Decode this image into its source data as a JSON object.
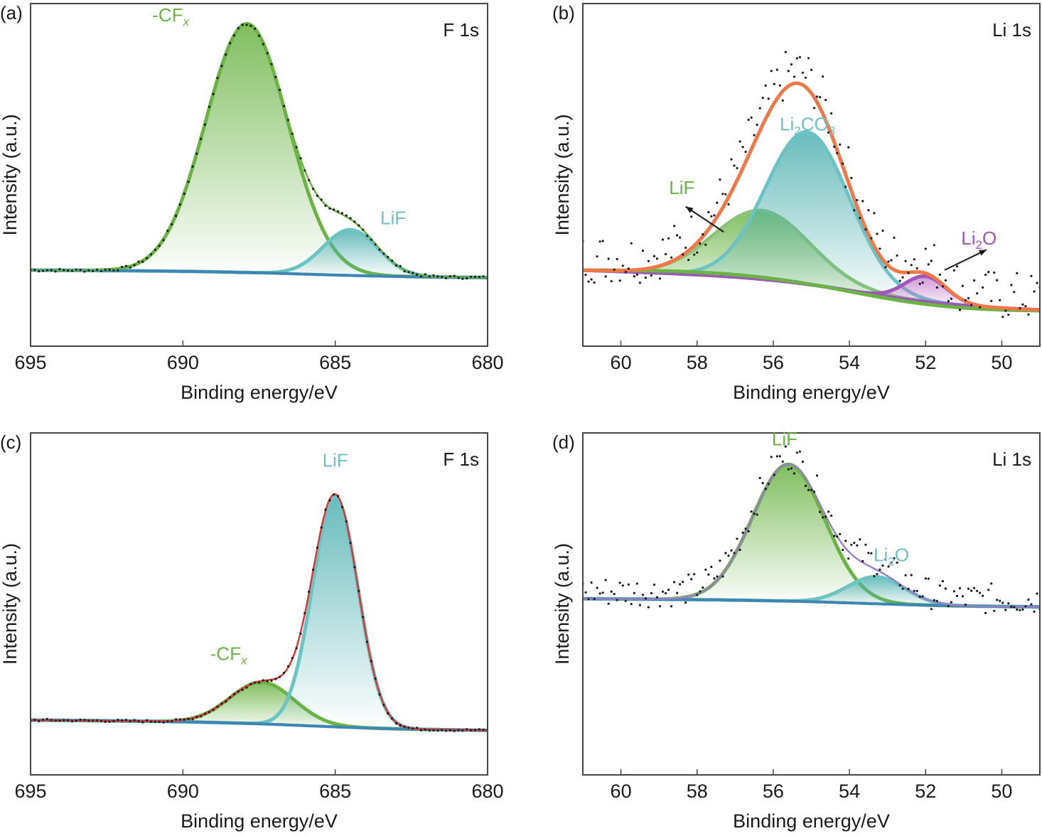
{
  "chart_data": [
    {
      "type": "line",
      "panel": "(a)",
      "core_level": "F 1s",
      "xlabel": "Binding energy/eV",
      "ylabel": "Intensity (a.u.)",
      "xlim": [
        695,
        680
      ],
      "ylim": [
        -0.3,
        1.05
      ],
      "xticks": [
        695,
        690,
        685,
        680
      ],
      "background": {
        "start": 0.0,
        "end": -0.03,
        "color": "#3a7fc4"
      },
      "envelope": {
        "color": "#6ab344"
      },
      "components": [
        {
          "name": "-CFx",
          "label": "-CF",
          "label_sub": "x",
          "center": 687.9,
          "height": 0.98,
          "sigma": 1.35,
          "color": "#6ab344",
          "fill": "#6ab344"
        },
        {
          "name": "LiF",
          "label": "LiF",
          "label_sub": "",
          "center": 684.5,
          "height": 0.18,
          "sigma": 0.9,
          "color": "#6cc3c3",
          "fill": "#4fb0b0"
        }
      ],
      "labels": [
        {
          "text": "-CF",
          "sub": "x",
          "x": 690.4,
          "y": 0.98,
          "color": "#6ab344"
        },
        {
          "text": "LiF",
          "sub": "",
          "x": 683.1,
          "y": 0.18,
          "color": "#6cc3c3"
        }
      ],
      "noise": 0.006,
      "arrows": []
    },
    {
      "type": "line",
      "panel": "(b)",
      "core_level": "Li 1s",
      "xlabel": "Binding energy/eV",
      "ylabel": "Intensity (a.u.)",
      "xlim": [
        61,
        49
      ],
      "ylim": [
        -0.3,
        1.05
      ],
      "xticks": [
        60,
        58,
        56,
        54,
        52,
        50
      ],
      "background": {
        "start": 0.0,
        "end": -0.16,
        "color": "#9a5bb5"
      },
      "background2": {
        "color": "#6ab344"
      },
      "envelope": {
        "color": "#f07848"
      },
      "components": [
        {
          "name": "LiF",
          "label": "LiF",
          "label_sub": "",
          "center": 56.3,
          "height": 0.27,
          "sigma": 1.25,
          "color": "#8cc47a",
          "fill": "#6ab344"
        },
        {
          "name": "Li2CO3",
          "label": "Li",
          "label_sub": "2",
          "center": 55.1,
          "height": 0.6,
          "sigma": 1.1,
          "color": "#6cc3c3",
          "fill": "#4fb0b0"
        },
        {
          "name": "Li2O",
          "label": "Li",
          "label_sub": "2",
          "center": 52.0,
          "height": 0.1,
          "sigma": 0.55,
          "color": "#a055b8",
          "fill": "#c070c8"
        }
      ],
      "labels": [
        {
          "text": "LiF",
          "sub": "",
          "x": 58.4,
          "y": 0.3,
          "color": "#6ab344"
        },
        {
          "text": "Li",
          "sub": "2",
          "sub_after": "CO",
          "sub2": "3",
          "x": 55.1,
          "y": 0.55,
          "color": "#6cc3c3"
        },
        {
          "text": "Li",
          "sub": "2",
          "sub_after": "O",
          "x": 50.6,
          "y": 0.1,
          "color": "#a055b8"
        }
      ],
      "arrows": [
        {
          "from": [
            57.3,
            0.15
          ],
          "to": [
            58.3,
            0.25
          ]
        },
        {
          "from": [
            51.5,
            0.0
          ],
          "to": [
            50.4,
            0.08
          ]
        }
      ],
      "noise": 0.04
    },
    {
      "type": "line",
      "panel": "(c)",
      "core_level": "F 1s",
      "xlabel": "Binding energy/eV",
      "ylabel": "Intensity (a.u.)",
      "xlim": [
        695,
        680
      ],
      "ylim": [
        -0.21,
        1.1
      ],
      "xticks": [
        695,
        690,
        685,
        680
      ],
      "background": {
        "start": 0.0,
        "end": -0.04,
        "color": "#3a7fc4"
      },
      "envelope": {
        "color": "#d83a3a"
      },
      "components": [
        {
          "name": "-CFx",
          "label": "-CF",
          "label_sub": "x",
          "center": 687.4,
          "height": 0.16,
          "sigma": 1.05,
          "color": "#6ab344",
          "fill": "#6ab344"
        },
        {
          "name": "LiF",
          "label": "LiF",
          "label_sub": "",
          "center": 685.0,
          "height": 0.88,
          "sigma": 0.75,
          "color": "#6cc3c3",
          "fill": "#4fb0b0"
        }
      ],
      "labels": [
        {
          "text": "LiF",
          "sub": "",
          "x": 685.0,
          "y": 0.97,
          "color": "#6cc3c3"
        },
        {
          "text": "-CF",
          "sub": "x",
          "x": 688.5,
          "y": 0.23,
          "color": "#6ab344"
        }
      ],
      "noise": 0.005,
      "arrows": []
    },
    {
      "type": "line",
      "panel": "(d)",
      "core_level": "Li 1s",
      "xlabel": "Binding energy/eV",
      "ylabel": "Intensity (a.u.)",
      "xlim": [
        61,
        49
      ],
      "ylim": [
        -0.85,
        0.8
      ],
      "xticks": [
        60,
        58,
        56,
        54,
        52,
        50
      ],
      "background": {
        "start": 0.0,
        "end": -0.04,
        "color": "#3a7fc4"
      },
      "envelope": {
        "color": "#9a7fc4"
      },
      "components": [
        {
          "name": "LiF",
          "label": "LiF",
          "label_sub": "",
          "center": 55.6,
          "height": 0.66,
          "sigma": 0.95,
          "color": "#6ab344",
          "fill": "#6ab344"
        },
        {
          "name": "Li2O",
          "label": "Li",
          "label_sub": "2",
          "center": 53.3,
          "height": 0.13,
          "sigma": 0.75,
          "color": "#6cc3c3",
          "fill": "#4fb0b0"
        }
      ],
      "labels": [
        {
          "text": "LiF",
          "sub": "",
          "x": 55.7,
          "y": 0.74,
          "color": "#6ab344"
        },
        {
          "text": "Li",
          "sub": "2",
          "sub_after": "O",
          "x": 52.9,
          "y": 0.18,
          "color": "#6cc3c3"
        }
      ],
      "noise": 0.03,
      "arrows": []
    }
  ]
}
